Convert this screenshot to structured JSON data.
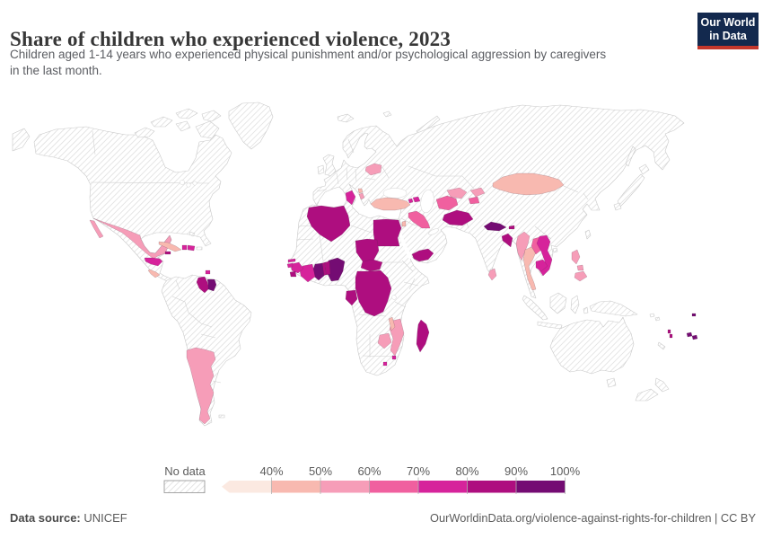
{
  "header": {
    "title": "Share of children who experienced violence, 2023",
    "subtitle_line1": "Children aged 1-14 years who experienced physical punishment and/or psychological aggression by caregivers",
    "subtitle_line2": "in the last month.",
    "logo": {
      "line1": "Our World",
      "line2": "in Data",
      "bg_color": "#13294e",
      "accent_color": "#c4372c"
    }
  },
  "legend": {
    "no_data_label": "No data",
    "ticks": [
      "40%",
      "50%",
      "60%",
      "70%",
      "80%",
      "90%",
      "100%"
    ],
    "bins": [
      {
        "id": "lt40",
        "label": "<40%",
        "color": "#fbe9e1"
      },
      {
        "id": "40-50",
        "label": "40-50%",
        "color": "#f8b9b0"
      },
      {
        "id": "50-60",
        "label": "50-60%",
        "color": "#f69db8"
      },
      {
        "id": "60-70",
        "label": "60-70%",
        "color": "#f0609f"
      },
      {
        "id": "70-80",
        "label": "70-80%",
        "color": "#d6239b"
      },
      {
        "id": "80-90",
        "label": "80-90%",
        "color": "#ae0e7f"
      },
      {
        "id": "90-100",
        "label": "90-100%",
        "color": "#740c73"
      }
    ]
  },
  "footer": {
    "source_label": "Data source:",
    "source_value": " UNICEF",
    "attribution": "OurWorldinData.org/violence-against-rights-for-children | CC BY"
  },
  "chart_data": {
    "type": "choropleth_map",
    "title": "Share of children who experienced violence, 2023",
    "year": 2023,
    "unit": "% of children aged 1-14",
    "no_data_style": "hatched",
    "countries": [
      {
        "id": "mexico",
        "name": "Mexico",
        "bin": "50-60"
      },
      {
        "id": "cuba",
        "name": "Cuba",
        "bin": "40-50"
      },
      {
        "id": "jamaica",
        "name": "Jamaica",
        "bin": "80-90"
      },
      {
        "id": "haiti",
        "name": "Haiti",
        "bin": "70-80"
      },
      {
        "id": "dominican-republic",
        "name": "Dominican Republic",
        "bin": "70-80"
      },
      {
        "id": "trinidad-and-tobago",
        "name": "Trinidad and Tobago",
        "bin": "70-80"
      },
      {
        "id": "honduras",
        "name": "Honduras",
        "bin": "70-80"
      },
      {
        "id": "costa-rica",
        "name": "Costa Rica",
        "bin": "40-50"
      },
      {
        "id": "guyana",
        "name": "Guyana",
        "bin": "80-90"
      },
      {
        "id": "suriname",
        "name": "Suriname",
        "bin": "90-100"
      },
      {
        "id": "argentina",
        "name": "Argentina",
        "bin": "50-60"
      },
      {
        "id": "belarus",
        "name": "Belarus",
        "bin": "50-60"
      },
      {
        "id": "montenegro",
        "name": "Montenegro",
        "bin": "40-50"
      },
      {
        "id": "albania",
        "name": "Albania",
        "bin": "50-60"
      },
      {
        "id": "turkey",
        "name": "Turkey",
        "bin": "40-50"
      },
      {
        "id": "armenia",
        "name": "Armenia",
        "bin": "70-80"
      },
      {
        "id": "azerbaijan",
        "name": "Azerbaijan",
        "bin": "70-80"
      },
      {
        "id": "jordan",
        "name": "Jordan",
        "bin": "40-50"
      },
      {
        "id": "iraq",
        "name": "Iraq",
        "bin": "60-70"
      },
      {
        "id": "yemen",
        "name": "Yemen",
        "bin": "80-90"
      },
      {
        "id": "turkmenistan",
        "name": "Turkmenistan",
        "bin": "60-70"
      },
      {
        "id": "uzbekistan",
        "name": "Uzbekistan",
        "bin": "50-60"
      },
      {
        "id": "kyrgyzstan",
        "name": "Kyrgyzstan",
        "bin": "50-60"
      },
      {
        "id": "tajikistan",
        "name": "Tajikistan",
        "bin": "60-70"
      },
      {
        "id": "afghanistan",
        "name": "Afghanistan",
        "bin": "80-90"
      },
      {
        "id": "mongolia",
        "name": "Mongolia",
        "bin": "40-50"
      },
      {
        "id": "nepal",
        "name": "Nepal",
        "bin": "90-100"
      },
      {
        "id": "bhutan",
        "name": "Bhutan",
        "bin": "80-90"
      },
      {
        "id": "bangladesh",
        "name": "Bangladesh",
        "bin": "80-90"
      },
      {
        "id": "myanmar",
        "name": "Myanmar",
        "bin": "50-60"
      },
      {
        "id": "thailand",
        "name": "Thailand",
        "bin": "40-50"
      },
      {
        "id": "laos",
        "name": "Laos",
        "bin": "60-70"
      },
      {
        "id": "vietnam",
        "name": "Vietnam",
        "bin": "70-80"
      },
      {
        "id": "cambodia",
        "name": "Cambodia",
        "bin": "70-80"
      },
      {
        "id": "sri-lanka",
        "name": "Sri Lanka",
        "bin": "50-60"
      },
      {
        "id": "philippines",
        "name": "Philippines",
        "bin": "50-60"
      },
      {
        "id": "fiji",
        "name": "Fiji",
        "bin": "90-100"
      },
      {
        "id": "vanuatu",
        "name": "Vanuatu",
        "bin": "80-90"
      },
      {
        "id": "samoa",
        "name": "Samoa",
        "bin": "90-100"
      },
      {
        "id": "algeria",
        "name": "Algeria",
        "bin": "80-90"
      },
      {
        "id": "tunisia",
        "name": "Tunisia",
        "bin": "70-80"
      },
      {
        "id": "egypt",
        "name": "Egypt",
        "bin": "80-90"
      },
      {
        "id": "chad",
        "name": "Chad",
        "bin": "80-90"
      },
      {
        "id": "central-african-republic",
        "name": "Central African Republic",
        "bin": "80-90"
      },
      {
        "id": "democratic-republic-of-congo",
        "name": "Democratic Republic of Congo",
        "bin": "80-90"
      },
      {
        "id": "congo-brazzaville",
        "name": "Congo",
        "bin": "80-90"
      },
      {
        "id": "gabon",
        "name": "Gabon",
        "bin": "80-90"
      },
      {
        "id": "nigeria",
        "name": "Nigeria",
        "bin": "90-100"
      },
      {
        "id": "benin",
        "name": "Benin",
        "bin": "80-90"
      },
      {
        "id": "togo",
        "name": "Togo",
        "bin": "80-90"
      },
      {
        "id": "ghana",
        "name": "Ghana",
        "bin": "90-100"
      },
      {
        "id": "cote-divoire",
        "name": "Cote d'Ivoire",
        "bin": "70-80"
      },
      {
        "id": "guinea",
        "name": "Guinea",
        "bin": "70-80"
      },
      {
        "id": "sierra-leone",
        "name": "Sierra Leone",
        "bin": "80-90"
      },
      {
        "id": "gambia",
        "name": "Gambia",
        "bin": "70-80"
      },
      {
        "id": "guinea-bissau",
        "name": "Guinea-Bissau",
        "bin": "70-80"
      },
      {
        "id": "madagascar",
        "name": "Madagascar",
        "bin": "80-90"
      },
      {
        "id": "malawi",
        "name": "Malawi",
        "bin": "40-50"
      },
      {
        "id": "mozambique",
        "name": "Mozambique",
        "bin": "50-60"
      },
      {
        "id": "zimbabwe",
        "name": "Zimbabwe",
        "bin": "50-60"
      },
      {
        "id": "eswatini",
        "name": "Eswatini",
        "bin": "70-80"
      },
      {
        "id": "lesotho",
        "name": "Lesotho",
        "bin": "70-80"
      }
    ]
  }
}
